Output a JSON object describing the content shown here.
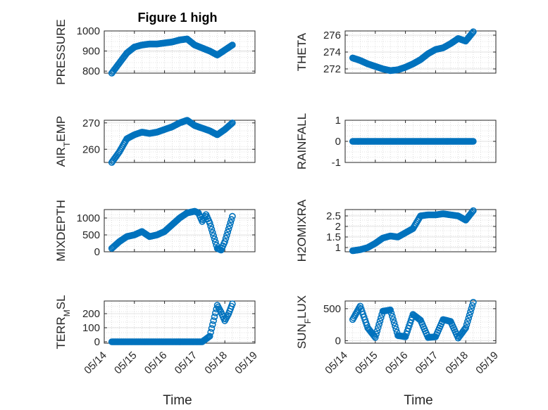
{
  "figure": {
    "title": "Figure 1 high",
    "xlabel": "Time",
    "x_tick_labels": [
      "05/14",
      "05/15",
      "05/16",
      "05/17",
      "05/18",
      "05/19"
    ]
  },
  "colors": {
    "marker": "#0072BD",
    "axes": "#262626"
  },
  "chart_data": [
    {
      "type": "scatter",
      "marker": "circle-open",
      "ylabel": "PRESSURE",
      "xlim": [
        "05/14",
        "05/19"
      ],
      "ylim": [
        790,
        1000
      ],
      "yticks": [
        800,
        900,
        1000
      ],
      "grid": true,
      "points_x": [
        "05/14 06:00",
        "05/14 12:00",
        "05/14 18:00",
        "05/15 00:00",
        "05/15 06:00",
        "05/15 12:00",
        "05/15 18:00",
        "05/16 00:00",
        "05/16 06:00",
        "05/16 12:00",
        "05/16 18:00",
        "05/17 00:00",
        "05/17 06:00",
        "05/17 12:00",
        "05/17 18:00",
        "05/18 00:00",
        "05/18 06:00"
      ],
      "points_y": [
        790,
        840,
        890,
        920,
        930,
        935,
        935,
        940,
        945,
        955,
        960,
        930,
        915,
        900,
        880,
        905,
        930
      ]
    },
    {
      "type": "scatter",
      "marker": "circle-open",
      "ylabel": "THETA",
      "xlim": [
        "05/14",
        "05/19"
      ],
      "ylim": [
        271.5,
        276.5
      ],
      "yticks": [
        272,
        274,
        276
      ],
      "grid": true,
      "points_x": [
        "05/14 06:00",
        "05/14 12:00",
        "05/14 18:00",
        "05/15 00:00",
        "05/15 06:00",
        "05/15 12:00",
        "05/15 18:00",
        "05/16 00:00",
        "05/16 06:00",
        "05/16 12:00",
        "05/16 18:00",
        "05/17 00:00",
        "05/17 06:00",
        "05/17 12:00",
        "05/17 18:00",
        "05/18 00:00",
        "05/18 06:00"
      ],
      "points_y": [
        273.3,
        273.0,
        272.6,
        272.3,
        272.0,
        271.8,
        271.9,
        272.2,
        272.6,
        273.1,
        273.8,
        274.3,
        274.5,
        275.0,
        275.6,
        275.3,
        276.4
      ]
    },
    {
      "type": "scatter",
      "marker": "circle-open",
      "ylabel_base": "AIR",
      "ylabel_sub": "T",
      "ylabel_rest": "EMP",
      "xlim": [
        "05/14",
        "05/19"
      ],
      "ylim": [
        255,
        271
      ],
      "yticks": [
        260,
        270
      ],
      "grid": true,
      "points_x": [
        "05/14 06:00",
        "05/14 12:00",
        "05/14 18:00",
        "05/15 00:00",
        "05/15 06:00",
        "05/15 12:00",
        "05/15 18:00",
        "05/16 00:00",
        "05/16 06:00",
        "05/16 12:00",
        "05/16 18:00",
        "05/17 00:00",
        "05/17 06:00",
        "05/17 12:00",
        "05/17 18:00",
        "05/18 00:00",
        "05/18 06:00"
      ],
      "points_y": [
        255,
        259,
        264,
        265.5,
        266.5,
        266,
        266.5,
        267.5,
        268.5,
        270,
        271,
        269,
        268,
        267,
        265.5,
        267.5,
        270
      ]
    },
    {
      "type": "scatter",
      "marker": "circle-open",
      "ylabel": "RAINFALL",
      "xlim": [
        "05/14",
        "05/19"
      ],
      "ylim": [
        -1,
        1
      ],
      "yticks": [
        -1,
        0,
        1
      ],
      "grid": true,
      "points_x": [
        "05/14 06:00",
        "05/18 06:00"
      ],
      "points_y": [
        0,
        0
      ]
    },
    {
      "type": "scatter",
      "marker": "circle-open",
      "ylabel": "MIXDEPTH",
      "xlim": [
        "05/14",
        "05/19"
      ],
      "ylim": [
        0,
        1250
      ],
      "yticks": [
        0,
        500,
        1000
      ],
      "grid": true,
      "points_x": [
        "05/14 06:00",
        "05/14 12:00",
        "05/14 18:00",
        "05/15 00:00",
        "05/15 06:00",
        "05/15 12:00",
        "05/15 18:00",
        "05/16 00:00",
        "05/16 06:00",
        "05/16 12:00",
        "05/16 18:00",
        "05/17 00:00",
        "05/17 03:00",
        "05/17 06:00",
        "05/17 09:00",
        "05/17 12:00",
        "05/17 18:00",
        "05/17 21:00",
        "05/18 00:00",
        "05/18 06:00"
      ],
      "points_y": [
        100,
        300,
        450,
        500,
        600,
        450,
        500,
        600,
        800,
        1000,
        1150,
        1200,
        1150,
        900,
        1100,
        850,
        100,
        50,
        300,
        1050
      ]
    },
    {
      "type": "scatter",
      "marker": "circle-open",
      "ylabel": "H2OMIXRA",
      "xlim": [
        "05/14",
        "05/19"
      ],
      "ylim": [
        0.8,
        2.8
      ],
      "yticks": [
        1,
        1.5,
        2,
        2.5
      ],
      "grid": true,
      "points_x": [
        "05/14 06:00",
        "05/14 12:00",
        "05/14 18:00",
        "05/15 00:00",
        "05/15 06:00",
        "05/15 12:00",
        "05/15 18:00",
        "05/16 00:00",
        "05/16 06:00",
        "05/16 12:00",
        "05/16 18:00",
        "05/17 00:00",
        "05/17 06:00",
        "05/17 12:00",
        "05/17 18:00",
        "05/18 00:00",
        "05/18 06:00"
      ],
      "points_y": [
        0.85,
        0.9,
        1.0,
        1.2,
        1.45,
        1.55,
        1.5,
        1.7,
        1.9,
        2.5,
        2.55,
        2.55,
        2.6,
        2.55,
        2.5,
        2.3,
        2.75
      ]
    },
    {
      "type": "scatter",
      "marker": "circle-open",
      "ylabel_base": "TERR",
      "ylabel_sub": "M",
      "ylabel_rest": "SL",
      "xlim": [
        "05/14",
        "05/19"
      ],
      "ylim": [
        -10,
        290
      ],
      "yticks": [
        0,
        100,
        200
      ],
      "grid": true,
      "points_x": [
        "05/14 06:00",
        "05/14 18:00",
        "05/15 06:00",
        "05/15 18:00",
        "05/16 06:00",
        "05/16 18:00",
        "05/17 06:00",
        "05/17 12:00",
        "05/17 18:00",
        "05/17 21:00",
        "05/18 00:00",
        "05/18 03:00",
        "05/18 06:00"
      ],
      "points_y": [
        0,
        0,
        0,
        0,
        0,
        0,
        0,
        40,
        260,
        210,
        150,
        200,
        270
      ]
    },
    {
      "type": "scatter",
      "marker": "circle-open",
      "ylabel_base": "SUN",
      "ylabel_sub": "F",
      "ylabel_rest": "LUX",
      "xlim": [
        "05/14",
        "05/19"
      ],
      "ylim": [
        -40,
        620
      ],
      "yticks": [
        0,
        500
      ],
      "grid": true,
      "points_x": [
        "05/14 06:00",
        "05/14 12:00",
        "05/14 18:00",
        "05/15 00:00",
        "05/15 06:00",
        "05/15 12:00",
        "05/15 18:00",
        "05/16 00:00",
        "05/16 06:00",
        "05/16 12:00",
        "05/16 18:00",
        "05/17 00:00",
        "05/17 06:00",
        "05/17 12:00",
        "05/17 18:00",
        "05/18 00:00",
        "05/18 06:00"
      ],
      "points_y": [
        330,
        540,
        200,
        50,
        460,
        480,
        80,
        60,
        410,
        320,
        50,
        60,
        330,
        300,
        40,
        200,
        600
      ]
    }
  ]
}
